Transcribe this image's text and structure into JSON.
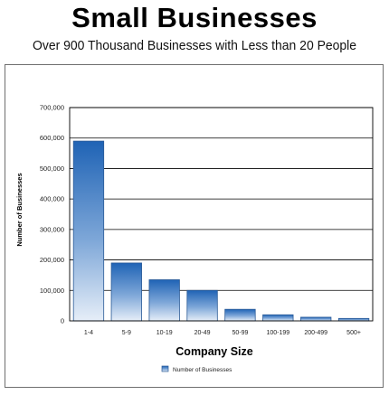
{
  "header": {
    "title": "Small Businesses",
    "subtitle": "Over 900 Thousand Businesses with Less than 20 People"
  },
  "chart_data": {
    "type": "bar",
    "categories": [
      "1-4",
      "5-9",
      "10-19",
      "20-49",
      "50-99",
      "100-199",
      "200-499",
      "500+"
    ],
    "series": [
      {
        "name": "Number of Businesses",
        "values": [
          590000,
          190000,
          135000,
          100000,
          38000,
          20000,
          12000,
          8000
        ]
      }
    ],
    "title": "Small Businesses",
    "subtitle": "Over 900 Thousand Businesses with Less than 20 People",
    "xlabel": "Company Size",
    "ylabel": "Number of Businesses",
    "ylim": [
      0,
      700000
    ],
    "yticks": [
      0,
      100000,
      200000,
      300000,
      400000,
      500000,
      600000,
      700000
    ],
    "ytick_labels": [
      "0",
      "100,000",
      "200,000",
      "300,000",
      "400,000",
      "500,000",
      "600,000",
      "700,000"
    ],
    "grid": true,
    "legend_position": "bottom-center",
    "colors": {
      "bar_top": "#1f63b5",
      "bar_bottom": "#e6eef8",
      "bar_stroke": "#2a5a96",
      "grid": "#000000",
      "axis": "#000000"
    }
  }
}
